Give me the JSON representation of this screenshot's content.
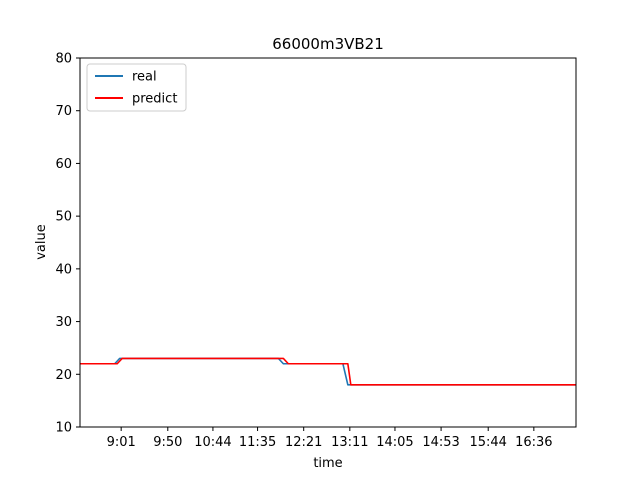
{
  "chart_data": {
    "type": "line",
    "title": "66000m3VB21",
    "xlabel": "time",
    "ylabel": "value",
    "ylim": [
      10,
      80
    ],
    "yticks": [
      10,
      20,
      30,
      40,
      50,
      60,
      70,
      80
    ],
    "xrange": [
      0,
      100
    ],
    "xticks": [
      {
        "x": 8.3,
        "label": "9:01"
      },
      {
        "x": 17.7,
        "label": "9:50"
      },
      {
        "x": 26.8,
        "label": "10:44"
      },
      {
        "x": 35.8,
        "label": "11:35"
      },
      {
        "x": 45.1,
        "label": "12:21"
      },
      {
        "x": 54.4,
        "label": "13:11"
      },
      {
        "x": 63.5,
        "label": "14:05"
      },
      {
        "x": 72.8,
        "label": "14:53"
      },
      {
        "x": 82.3,
        "label": "15:44"
      },
      {
        "x": 91.5,
        "label": "16:36"
      }
    ],
    "grid": false,
    "legend_position": "upper-left",
    "series": [
      {
        "name": "real",
        "color": "#1f77b4",
        "points": [
          [
            0,
            22
          ],
          [
            7,
            22
          ],
          [
            8,
            23
          ],
          [
            40,
            23
          ],
          [
            41,
            22
          ],
          [
            53,
            22
          ],
          [
            54,
            18
          ],
          [
            100,
            18
          ]
        ]
      },
      {
        "name": "predict",
        "color": "#ff0000",
        "points": [
          [
            0,
            22
          ],
          [
            7.5,
            22
          ],
          [
            8.5,
            23
          ],
          [
            41,
            23
          ],
          [
            42,
            22
          ],
          [
            54,
            22
          ],
          [
            54.6,
            18
          ],
          [
            100,
            18
          ]
        ]
      }
    ]
  }
}
